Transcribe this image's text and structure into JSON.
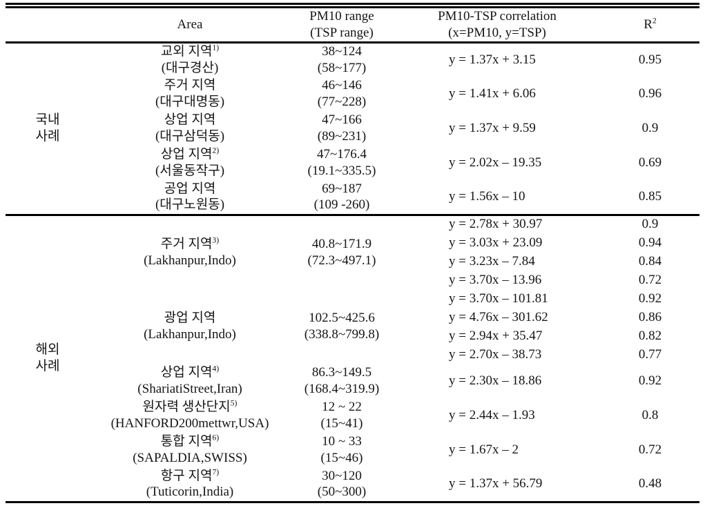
{
  "table": {
    "header": {
      "area": "Area",
      "range_line1": "PM10 range",
      "range_line2": "(TSP range)",
      "corr_line1": "PM10-TSP correlation",
      "corr_line2": "(x=PM10, y=TSP)",
      "r2_base": "R",
      "r2_sup": "2"
    },
    "sections": [
      {
        "group": [
          "국내",
          "사례"
        ],
        "blocks": [
          {
            "area": "교외 지역",
            "area_sup": "1)",
            "area_sub": "(대구경산)",
            "range": "38~124",
            "range_sub": "(58~177)",
            "rows": [
              {
                "eq": "y = 1.37x + 3.15",
                "r2": "0.95"
              }
            ]
          },
          {
            "area": "주거 지역",
            "area_sup": "",
            "area_sub": "(대구대명동)",
            "range": "46~146",
            "range_sub": "(77~228)",
            "rows": [
              {
                "eq": "y = 1.41x + 6.06",
                "r2": "0.96"
              }
            ]
          },
          {
            "area": "상업 지역",
            "area_sup": "",
            "area_sub": "(대구삼덕동)",
            "range": "47~166",
            "range_sub": "(89~231)",
            "rows": [
              {
                "eq": "y = 1.37x + 9.59",
                "r2": "0.9"
              }
            ]
          },
          {
            "area": "상업 지역",
            "area_sup": "2)",
            "area_sub": "(서울동작구)",
            "range": "47~176.4",
            "range_sub": "(19.1~335.5)",
            "rows": [
              {
                "eq": "y = 2.02x – 19.35",
                "r2": "0.69"
              }
            ]
          },
          {
            "area": "공업 지역",
            "area_sup": "",
            "area_sub": "(대구노원동)",
            "range": "69~187",
            "range_sub": "(109 -260)",
            "rows": [
              {
                "eq": "y = 1.56x – 10",
                "r2": "0.85"
              }
            ]
          }
        ]
      },
      {
        "group": [
          "해외",
          "사례"
        ],
        "blocks": [
          {
            "area": "주거 지역",
            "area_sup": "3)",
            "area_sub": "(Lakhanpur,Indo)",
            "range": "40.8~171.9",
            "range_sub": "(72.3~497.1)",
            "rows": [
              {
                "eq": "y = 2.78x + 30.97",
                "r2": "0.9"
              },
              {
                "eq": "y = 3.03x + 23.09",
                "r2": "0.94"
              },
              {
                "eq": "y = 3.23x – 7.84",
                "r2": "0.84"
              },
              {
                "eq": "y = 3.70x – 13.96",
                "r2": "0.72"
              }
            ]
          },
          {
            "area": "광업 지역",
            "area_sup": "",
            "area_sub": "(Lakhanpur,Indo)",
            "range": "102.5~425.6",
            "range_sub": "(338.8~799.8)",
            "rows": [
              {
                "eq": "y = 3.70x – 101.81",
                "r2": "0.92"
              },
              {
                "eq": "y = 4.76x – 301.62",
                "r2": "0.86"
              },
              {
                "eq": "y = 2.94x + 35.47",
                "r2": "0.82"
              },
              {
                "eq": "y = 2.70x – 38.73",
                "r2": "0.77"
              }
            ]
          },
          {
            "area": "상업 지역",
            "area_sup": "4)",
            "area_sub": "(ShariatiStreet,Iran)",
            "range": "86.3~149.5",
            "range_sub": "(168.4~319.9)",
            "rows": [
              {
                "eq": "y = 2.30x – 18.86",
                "r2": "0.92"
              }
            ]
          },
          {
            "area": "원자력 생산단지",
            "area_sup": "5)",
            "area_sub": "(HANFORD200mettwr,USA)",
            "range": "12 ~ 22",
            "range_sub": "(15~41)",
            "rows": [
              {
                "eq": "y = 2.44x – 1.93",
                "r2": "0.8"
              }
            ]
          },
          {
            "area": "통합 지역",
            "area_sup": "6)",
            "area_sub": "(SAPALDIA,SWISS)",
            "range": "10 ~ 33",
            "range_sub": "(15~46)",
            "rows": [
              {
                "eq": "y = 1.67x – 2",
                "r2": "0.72"
              }
            ]
          },
          {
            "area": "항구 지역",
            "area_sup": "7)",
            "area_sub": "(Tuticorin,India)",
            "range": "30~120",
            "range_sub": "(50~300)",
            "rows": [
              {
                "eq": "y = 1.37x + 56.79",
                "r2": "0.48"
              }
            ]
          }
        ]
      }
    ]
  }
}
